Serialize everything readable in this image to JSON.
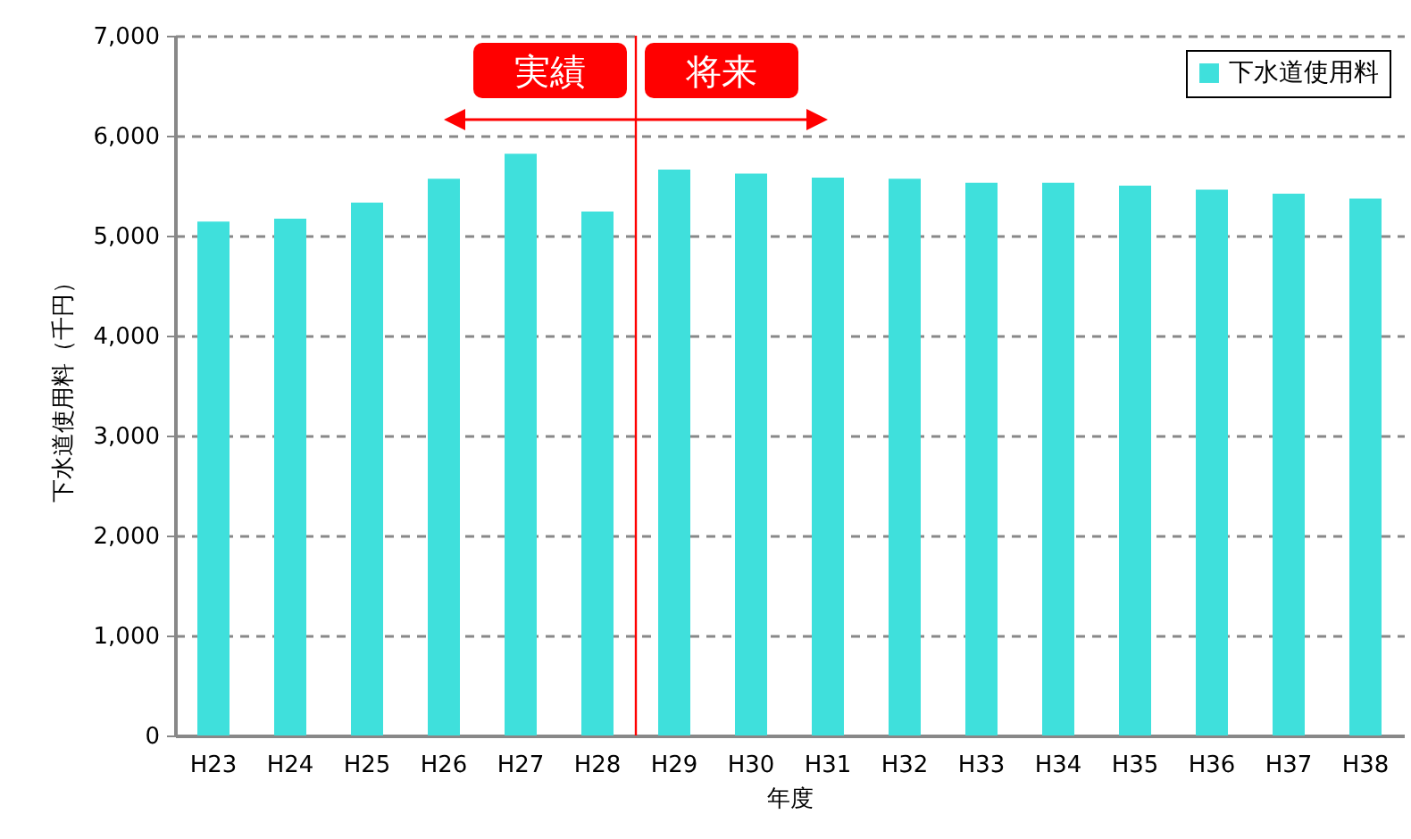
{
  "chart_data": {
    "type": "bar",
    "xlabel": "年度",
    "ylabel": "下水道使用料（千円）",
    "categories": [
      "H23",
      "H24",
      "H25",
      "H26",
      "H27",
      "H28",
      "H29",
      "H30",
      "H31",
      "H32",
      "H33",
      "H34",
      "H35",
      "H36",
      "H37",
      "H38"
    ],
    "series": [
      {
        "name": "下水道使用料",
        "color": "#3fe0dc",
        "values": [
          5140,
          5170,
          5330,
          5570,
          5820,
          5240,
          5660,
          5620,
          5580,
          5570,
          5530,
          5530,
          5500,
          5460,
          5420,
          5370
        ]
      }
    ],
    "ylim": [
      0,
      7000
    ],
    "yticks": [
      0,
      {
        "value": 1000,
        "label": "1,000"
      },
      {
        "value": 2000,
        "label": "2,000"
      },
      {
        "value": 3000,
        "label": "3,000"
      },
      {
        "value": 4000,
        "label": "4,000"
      },
      {
        "value": 5000,
        "label": "5,000"
      },
      {
        "value": 6000,
        "label": "6,000"
      },
      {
        "value": 7000,
        "label": "7,000"
      }
    ],
    "grid": "y",
    "legend": "top right",
    "ref_lines": [
      {
        "axis": "x",
        "value": "H29",
        "color": "#ff0000"
      }
    ],
    "annotations": [
      "実績",
      "将来"
    ]
  }
}
